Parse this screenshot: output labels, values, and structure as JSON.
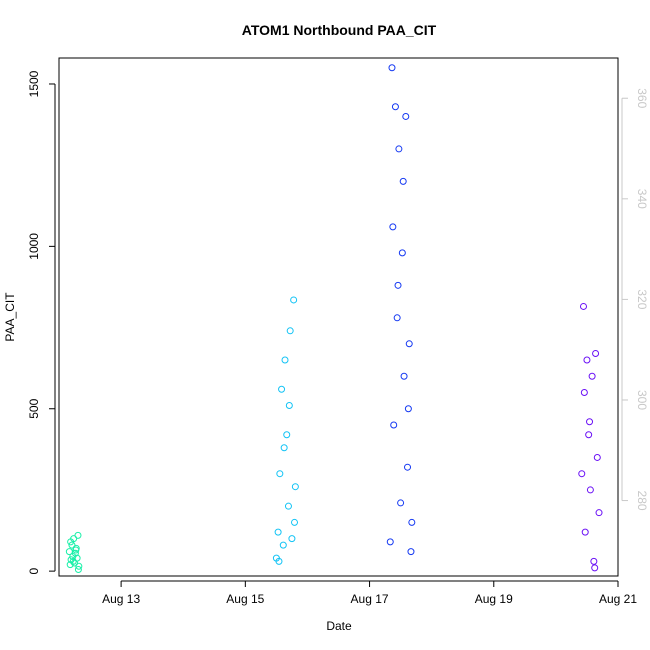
{
  "chart_data": {
    "type": "scatter",
    "title": "ATOM1 Northbound PAA_CIT",
    "xlabel": "Date",
    "ylabel": "PAA_CIT",
    "xlim": [
      "2024-08-12T00:00",
      "2024-08-21T00:00"
    ],
    "ylim": [
      -15,
      1580
    ],
    "y2lim": [
      265,
      368
    ],
    "x_ticks": [
      {
        "date": "2024-08-13T00:00",
        "label": "Aug 13"
      },
      {
        "date": "2024-08-15T00:00",
        "label": "Aug 15"
      },
      {
        "date": "2024-08-17T00:00",
        "label": "Aug 17"
      },
      {
        "date": "2024-08-19T00:00",
        "label": "Aug 19"
      },
      {
        "date": "2024-08-21T00:00",
        "label": "Aug 21"
      }
    ],
    "y_ticks": [
      0,
      500,
      1000,
      1500
    ],
    "y2_ticks": [
      280,
      300,
      320,
      340,
      360
    ],
    "grid": false,
    "legend": "none",
    "series": [
      {
        "color": "#19f0a8",
        "x": [
          "2024-08-12T04:00",
          "2024-08-12T04:20",
          "2024-08-12T04:40",
          "2024-08-12T05:00",
          "2024-08-12T05:20",
          "2024-08-12T05:40",
          "2024-08-12T06:00",
          "2024-08-12T06:20",
          "2024-08-12T06:40",
          "2024-08-12T07:00",
          "2024-08-12T07:20",
          "2024-08-12T07:40",
          "2024-08-12T04:30",
          "2024-08-12T05:30",
          "2024-08-12T06:30",
          "2024-08-12T07:30"
        ],
        "y": [
          60,
          20,
          35,
          80,
          45,
          100,
          25,
          55,
          70,
          40,
          110,
          15,
          90,
          30,
          65,
          5
        ]
      },
      {
        "color": "#12c3f5",
        "x": [
          "2024-08-15T12:00",
          "2024-08-15T12:40",
          "2024-08-15T13:20",
          "2024-08-15T14:00",
          "2024-08-15T14:40",
          "2024-08-15T15:20",
          "2024-08-15T16:00",
          "2024-08-15T16:40",
          "2024-08-15T17:20",
          "2024-08-15T18:00",
          "2024-08-15T18:40",
          "2024-08-15T19:20",
          "2024-08-15T13:00",
          "2024-08-15T15:00",
          "2024-08-15T17:00",
          "2024-08-15T19:00"
        ],
        "y": [
          40,
          120,
          300,
          560,
          80,
          650,
          420,
          200,
          740,
          100,
          835,
          260,
          30,
          380,
          510,
          150
        ]
      },
      {
        "color": "#1438f2",
        "x": [
          "2024-08-17T08:00",
          "2024-08-17T08:40",
          "2024-08-17T09:20",
          "2024-08-17T10:00",
          "2024-08-17T10:40",
          "2024-08-17T11:20",
          "2024-08-17T12:00",
          "2024-08-17T12:40",
          "2024-08-17T13:20",
          "2024-08-17T14:00",
          "2024-08-17T14:40",
          "2024-08-17T15:20",
          "2024-08-17T16:00",
          "2024-08-17T09:00",
          "2024-08-17T11:00",
          "2024-08-17T13:00",
          "2024-08-17T15:00",
          "2024-08-17T16:20"
        ],
        "y": [
          90,
          1550,
          450,
          1430,
          780,
          1300,
          210,
          980,
          600,
          1400,
          320,
          700,
          60,
          1060,
          880,
          1200,
          500,
          150
        ]
      },
      {
        "color": "#6a10f6",
        "x": [
          "2024-08-20T10:00",
          "2024-08-20T10:40",
          "2024-08-20T11:20",
          "2024-08-20T12:00",
          "2024-08-20T12:40",
          "2024-08-20T13:20",
          "2024-08-20T14:00",
          "2024-08-20T14:40",
          "2024-08-20T15:20",
          "2024-08-20T16:00",
          "2024-08-20T16:40",
          "2024-08-20T11:00",
          "2024-08-20T13:00",
          "2024-08-20T15:00"
        ],
        "y": [
          300,
          815,
          120,
          650,
          420,
          250,
          600,
          30,
          670,
          350,
          180,
          550,
          460,
          10
        ]
      }
    ]
  }
}
